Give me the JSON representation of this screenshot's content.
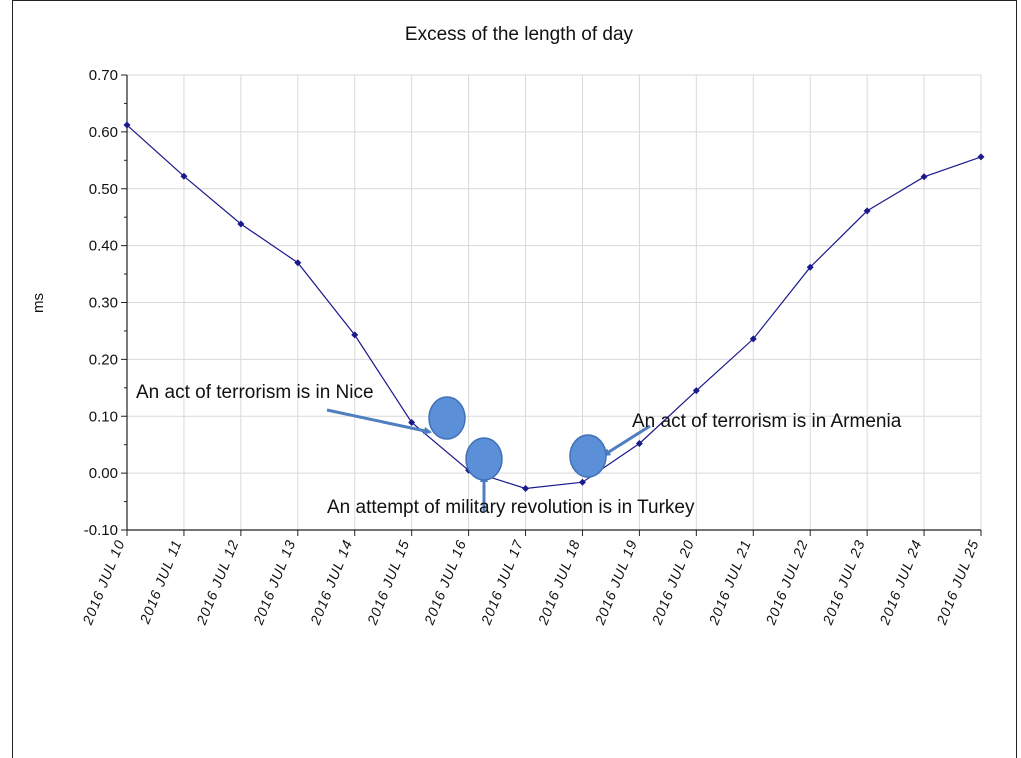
{
  "chart_data": {
    "type": "line",
    "title": "Excess of the length of day",
    "xlabel": "",
    "ylabel": "ms",
    "ylim": [
      -0.1,
      0.7
    ],
    "y_ticks": [
      "-0.10",
      "0.00",
      "0.10",
      "0.20",
      "0.30",
      "0.40",
      "0.50",
      "0.60",
      "0.70"
    ],
    "categories": [
      "2016 JUL 10",
      "2016 JUL 11",
      "2016 JUL 12",
      "2016 JUL 13",
      "2016 JUL 14",
      "2016 JUL 15",
      "2016 JUL 16",
      "2016 JUL 17",
      "2016 JUL 18",
      "2016 JUL 19",
      "2016 JUL 20",
      "2016 JUL 21",
      "2016 JUL 22",
      "2016 JUL 23",
      "2016 JUL 24",
      "2016 JUL 25"
    ],
    "series": [
      {
        "values": [
          0.612,
          0.522,
          0.438,
          0.37,
          0.243,
          0.089,
          0.005,
          -0.027,
          -0.016,
          0.052,
          0.145,
          0.236,
          0.362,
          0.461,
          0.521,
          0.556
        ],
        "color": "#1a1a8c"
      }
    ],
    "grid": true,
    "legend": "none",
    "annotations": [
      {
        "text": "An act of terrorism is in Nice",
        "marker_color": "#5b8fd8"
      },
      {
        "text": "An attempt of military revolution is in Turkey",
        "marker_color": "#5b8fd8"
      },
      {
        "text": "An act of terrorism is in Armenia",
        "marker_color": "#5b8fd8"
      }
    ],
    "arrow_color": "#4f7fc0"
  }
}
